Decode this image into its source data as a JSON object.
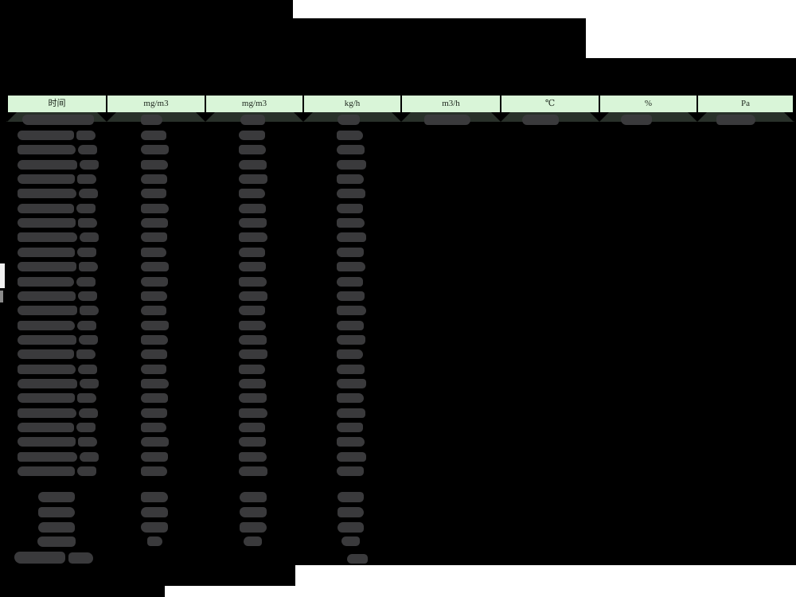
{
  "window": {
    "description": "Dark redacted emissions data report table screenshot",
    "background_color": "#ffffff",
    "mask_color": "#000000"
  },
  "colors": {
    "header_bg": "#d9f5d8",
    "header_border": "#000000",
    "header_text": "#202a20",
    "first_row_band": "#29312a",
    "redacted_blob": "#3a3a3c",
    "page_white": "#ffffff",
    "mask_black": "#000000"
  },
  "header": {
    "columns": [
      {
        "label": "时间"
      },
      {
        "label": "mg/m3"
      },
      {
        "label": "mg/m3"
      },
      {
        "label": "kg/h"
      },
      {
        "label": "m3/h"
      },
      {
        "label": "℃"
      },
      {
        "label": "%"
      },
      {
        "label": "Pa"
      }
    ]
  },
  "table": {
    "first_row": {
      "redacted": true,
      "columns_with_values": 8
    },
    "data_rows": {
      "count": 24,
      "redacted": true,
      "columns_with_values": 4
    },
    "summary_rows": {
      "count": 4,
      "redacted": true,
      "columns_with_values": 3
    },
    "total_row": {
      "redacted": true,
      "columns_with_values": 1
    }
  }
}
